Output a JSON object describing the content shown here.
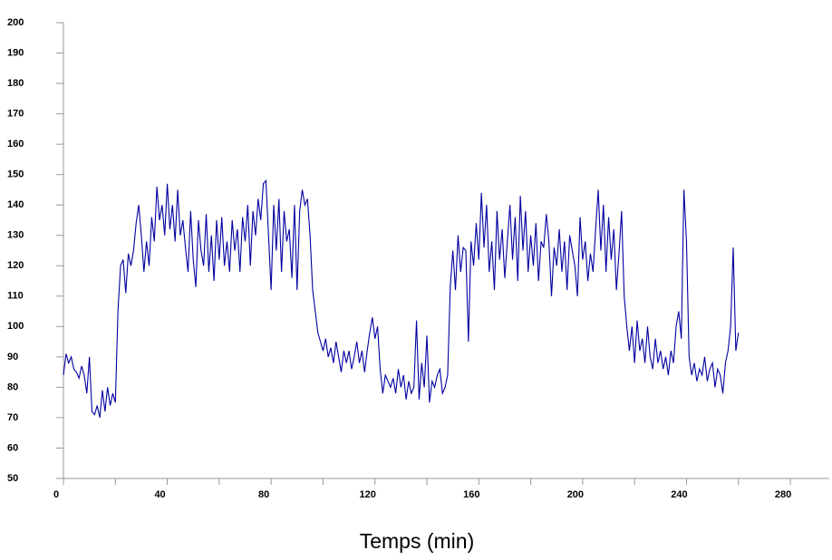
{
  "chart_data": {
    "type": "line",
    "x_label": "Temps (min)",
    "x": [
      0,
      1,
      2,
      3,
      4,
      5,
      6,
      7,
      8,
      9,
      10,
      11,
      12,
      13,
      14,
      15,
      16,
      17,
      18,
      19,
      20,
      21,
      22,
      23,
      24,
      25,
      26,
      27,
      28,
      29,
      30,
      31,
      32,
      33,
      34,
      35,
      36,
      37,
      38,
      39,
      40,
      41,
      42,
      43,
      44,
      45,
      46,
      47,
      48,
      49,
      50,
      51,
      52,
      53,
      54,
      55,
      56,
      57,
      58,
      59,
      60,
      61,
      62,
      63,
      64,
      65,
      66,
      67,
      68,
      69,
      70,
      71,
      72,
      73,
      74,
      75,
      76,
      77,
      78,
      79,
      80,
      81,
      82,
      83,
      84,
      85,
      86,
      87,
      88,
      89,
      90,
      91,
      92,
      93,
      94,
      95,
      96,
      97,
      98,
      99,
      100,
      101,
      102,
      103,
      104,
      105,
      106,
      107,
      108,
      109,
      110,
      111,
      112,
      113,
      114,
      115,
      116,
      117,
      118,
      119,
      120,
      121,
      122,
      123,
      124,
      125,
      126,
      127,
      128,
      129,
      130,
      131,
      132,
      133,
      134,
      135,
      136,
      137,
      138,
      139,
      140,
      141,
      142,
      143,
      144,
      145,
      146,
      147,
      148,
      149,
      150,
      151,
      152,
      153,
      154,
      155,
      156,
      157,
      158,
      159,
      160,
      161,
      162,
      163,
      164,
      165,
      166,
      167,
      168,
      169,
      170,
      171,
      172,
      173,
      174,
      175,
      176,
      177,
      178,
      179,
      180,
      181,
      182,
      183,
      184,
      185,
      186,
      187,
      188,
      189,
      190,
      191,
      192,
      193,
      194,
      195,
      196,
      197,
      198,
      199,
      200,
      201,
      202,
      203,
      204,
      205,
      206,
      207,
      208,
      209,
      210,
      211,
      212,
      213,
      214,
      215,
      216,
      217,
      218,
      219,
      220,
      221,
      222,
      223,
      224,
      225,
      226,
      227,
      228,
      229,
      230,
      231,
      232,
      233,
      234,
      235,
      236,
      237,
      238,
      239,
      240,
      241,
      242,
      243,
      244,
      245,
      246,
      247,
      248,
      249,
      250,
      251,
      252,
      253,
      254,
      255,
      256,
      257,
      258,
      259,
      260
    ],
    "series": [
      {
        "color": "#0000a0",
        "values": [
          84,
          91,
          88,
          90,
          86,
          85,
          83,
          87,
          84,
          78,
          90,
          72,
          71,
          74,
          70,
          79,
          72,
          80,
          74,
          78,
          75,
          105,
          120,
          122,
          111,
          124,
          120,
          125,
          134,
          140,
          130,
          118,
          128,
          120,
          136,
          128,
          146,
          135,
          140,
          130,
          147,
          132,
          140,
          128,
          145,
          130,
          135,
          126,
          118,
          138,
          122,
          113,
          135,
          125,
          120,
          137,
          118,
          130,
          115,
          135,
          122,
          136,
          120,
          128,
          118,
          135,
          125,
          132,
          118,
          136,
          128,
          140,
          120,
          138,
          130,
          142,
          135,
          147,
          148,
          130,
          112,
          140,
          125,
          142,
          118,
          138,
          128,
          132,
          116,
          140,
          112,
          138,
          145,
          140,
          142,
          130,
          112,
          105,
          98,
          95,
          92,
          96,
          90,
          93,
          88,
          95,
          90,
          85,
          92,
          88,
          92,
          86,
          90,
          95,
          88,
          92,
          85,
          92,
          98,
          103,
          96,
          100,
          86,
          78,
          84,
          82,
          80,
          83,
          78,
          86,
          80,
          84,
          76,
          82,
          78,
          80,
          102,
          76,
          88,
          80,
          97,
          75,
          82,
          80,
          84,
          86,
          78,
          80,
          84,
          113,
          125,
          112,
          130,
          118,
          126,
          125,
          95,
          128,
          120,
          134,
          122,
          144,
          126,
          140,
          118,
          128,
          112,
          138,
          122,
          132,
          116,
          128,
          140,
          122,
          136,
          115,
          143,
          125,
          138,
          118,
          130,
          120,
          134,
          115,
          128,
          126,
          137,
          128,
          110,
          126,
          120,
          132,
          118,
          128,
          112,
          130,
          125,
          120,
          110,
          136,
          122,
          128,
          115,
          124,
          118,
          132,
          145,
          125,
          140,
          118,
          136,
          122,
          132,
          112,
          124,
          138,
          110,
          100,
          92,
          100,
          88,
          102,
          92,
          96,
          88,
          100,
          90,
          86,
          96,
          88,
          92,
          86,
          90,
          84,
          92,
          88,
          100,
          105,
          96,
          145,
          128,
          90,
          84,
          88,
          82,
          86,
          84,
          90,
          82,
          86,
          88,
          80,
          86,
          84,
          78,
          88,
          92,
          100,
          126,
          92,
          98
        ]
      }
    ],
    "xlim": [
      0,
      295
    ],
    "xticks": [
      0,
      40,
      80,
      120,
      160,
      200,
      240,
      280
    ],
    "xminorticks": [
      20,
      60,
      100,
      140,
      180,
      220,
      260
    ],
    "ylim": [
      50,
      200
    ],
    "yticks": [
      50,
      60,
      70,
      80,
      90,
      100,
      110,
      120,
      130,
      140,
      150,
      160,
      170,
      180,
      190,
      200
    ]
  }
}
